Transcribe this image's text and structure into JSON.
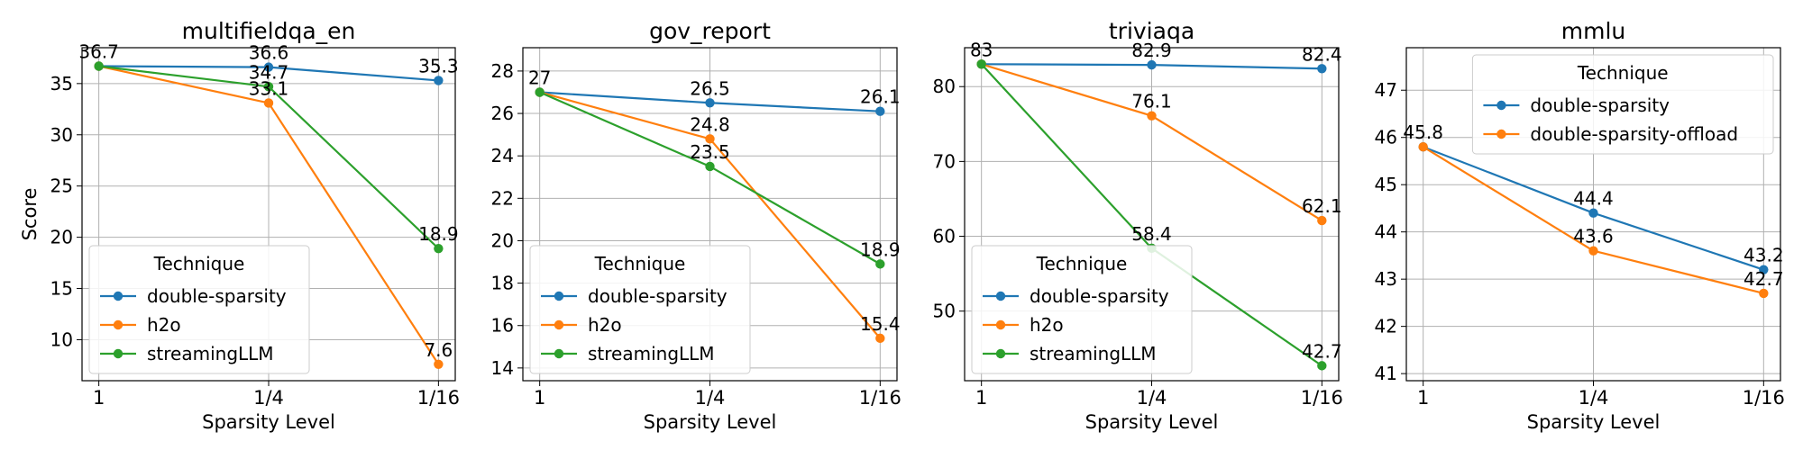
{
  "colors": {
    "double-sparsity": "#1f77b4",
    "h2o": "#ff7f0e",
    "streamingLLM": "#2ca02c",
    "double-sparsity-offload": "#ff7f0e"
  },
  "chart_data": [
    {
      "type": "line",
      "title": "multifieldqa_en",
      "xlabel": "Sparsity Level",
      "ylabel": "Score",
      "categories": [
        "1",
        "1/4",
        "1/16"
      ],
      "ylim": [
        6,
        38.5
      ],
      "yticks": [
        10,
        15,
        20,
        25,
        30,
        35
      ],
      "grid": true,
      "legend": {
        "title": "Technique",
        "placement": "lower-left"
      },
      "series": [
        {
          "name": "double-sparsity",
          "values": [
            36.7,
            36.6,
            35.3
          ]
        },
        {
          "name": "h2o",
          "values": [
            36.7,
            33.1,
            7.6
          ]
        },
        {
          "name": "streamingLLM",
          "values": [
            36.7,
            34.7,
            18.9
          ]
        }
      ],
      "data_labels": [
        {
          "series": "double-sparsity",
          "x": "1",
          "value": 36.7,
          "text": "36.7"
        },
        {
          "series": "double-sparsity",
          "x": "1/4",
          "value": 36.6,
          "text": "36.6"
        },
        {
          "series": "double-sparsity",
          "x": "1/16",
          "value": 35.3,
          "text": "35.3"
        },
        {
          "series": "streamingLLM",
          "x": "1/4",
          "value": 34.7,
          "text": "34.7"
        },
        {
          "series": "h2o",
          "x": "1/4",
          "value": 33.1,
          "text": "33.1"
        },
        {
          "series": "streamingLLM",
          "x": "1/16",
          "value": 18.9,
          "text": "18.9"
        },
        {
          "series": "h2o",
          "x": "1/16",
          "value": 7.6,
          "text": "7.6"
        }
      ]
    },
    {
      "type": "line",
      "title": "gov_report",
      "xlabel": "Sparsity Level",
      "ylabel": "",
      "categories": [
        "1",
        "1/4",
        "1/16"
      ],
      "ylim": [
        13.4,
        29.1
      ],
      "yticks": [
        14,
        16,
        18,
        20,
        22,
        24,
        26,
        28
      ],
      "grid": true,
      "legend": {
        "title": "Technique",
        "placement": "lower-left"
      },
      "series": [
        {
          "name": "double-sparsity",
          "values": [
            27,
            26.5,
            26.1
          ]
        },
        {
          "name": "h2o",
          "values": [
            27,
            24.8,
            15.4
          ]
        },
        {
          "name": "streamingLLM",
          "values": [
            27,
            23.5,
            18.9
          ]
        }
      ],
      "data_labels": [
        {
          "series": "double-sparsity",
          "x": "1",
          "value": 27,
          "text": "27"
        },
        {
          "series": "double-sparsity",
          "x": "1/4",
          "value": 26.5,
          "text": "26.5"
        },
        {
          "series": "double-sparsity",
          "x": "1/16",
          "value": 26.1,
          "text": "26.1"
        },
        {
          "series": "h2o",
          "x": "1/4",
          "value": 24.8,
          "text": "24.8"
        },
        {
          "series": "streamingLLM",
          "x": "1/4",
          "value": 23.5,
          "text": "23.5"
        },
        {
          "series": "streamingLLM",
          "x": "1/16",
          "value": 18.9,
          "text": "18.9"
        },
        {
          "series": "h2o",
          "x": "1/16",
          "value": 15.4,
          "text": "15.4"
        }
      ]
    },
    {
      "type": "line",
      "title": "triviaqa",
      "xlabel": "Sparsity Level",
      "ylabel": "",
      "categories": [
        "1",
        "1/4",
        "1/16"
      ],
      "ylim": [
        40.7,
        85.2
      ],
      "yticks": [
        50,
        60,
        70,
        80
      ],
      "grid": true,
      "legend": {
        "title": "Technique",
        "placement": "lower-left"
      },
      "series": [
        {
          "name": "double-sparsity",
          "values": [
            83,
            82.9,
            82.4
          ]
        },
        {
          "name": "h2o",
          "values": [
            83,
            76.1,
            62.1
          ]
        },
        {
          "name": "streamingLLM",
          "values": [
            83,
            58.4,
            42.7
          ]
        }
      ],
      "data_labels": [
        {
          "series": "double-sparsity",
          "x": "1",
          "value": 83,
          "text": "83"
        },
        {
          "series": "double-sparsity",
          "x": "1/4",
          "value": 82.9,
          "text": "82.9"
        },
        {
          "series": "double-sparsity",
          "x": "1/16",
          "value": 82.4,
          "text": "82.4"
        },
        {
          "series": "h2o",
          "x": "1/4",
          "value": 76.1,
          "text": "76.1"
        },
        {
          "series": "h2o",
          "x": "1/16",
          "value": 62.1,
          "text": "62.1"
        },
        {
          "series": "streamingLLM",
          "x": "1/4",
          "value": 58.4,
          "text": "58.4"
        },
        {
          "series": "streamingLLM",
          "x": "1/16",
          "value": 42.7,
          "text": "42.7"
        }
      ]
    },
    {
      "type": "line",
      "title": "mmlu",
      "xlabel": "Sparsity Level",
      "ylabel": "",
      "categories": [
        "1",
        "1/4",
        "1/16"
      ],
      "ylim": [
        40.85,
        47.9
      ],
      "yticks": [
        41,
        42,
        43,
        44,
        45,
        46,
        47
      ],
      "grid": true,
      "legend": {
        "title": "Technique",
        "placement": "upper-right"
      },
      "series": [
        {
          "name": "double-sparsity",
          "values": [
            45.8,
            44.4,
            43.2
          ]
        },
        {
          "name": "double-sparsity-offload",
          "values": [
            45.8,
            43.6,
            42.7
          ]
        }
      ],
      "data_labels": [
        {
          "series": "double-sparsity",
          "x": "1",
          "value": 45.8,
          "text": "45.8"
        },
        {
          "series": "double-sparsity",
          "x": "1/4",
          "value": 44.4,
          "text": "44.4"
        },
        {
          "series": "double-sparsity-offload",
          "x": "1/4",
          "value": 43.6,
          "text": "43.6"
        },
        {
          "series": "double-sparsity",
          "x": "1/16",
          "value": 43.2,
          "text": "43.2"
        },
        {
          "series": "double-sparsity-offload",
          "x": "1/16",
          "value": 42.7,
          "text": "42.7"
        }
      ]
    }
  ]
}
